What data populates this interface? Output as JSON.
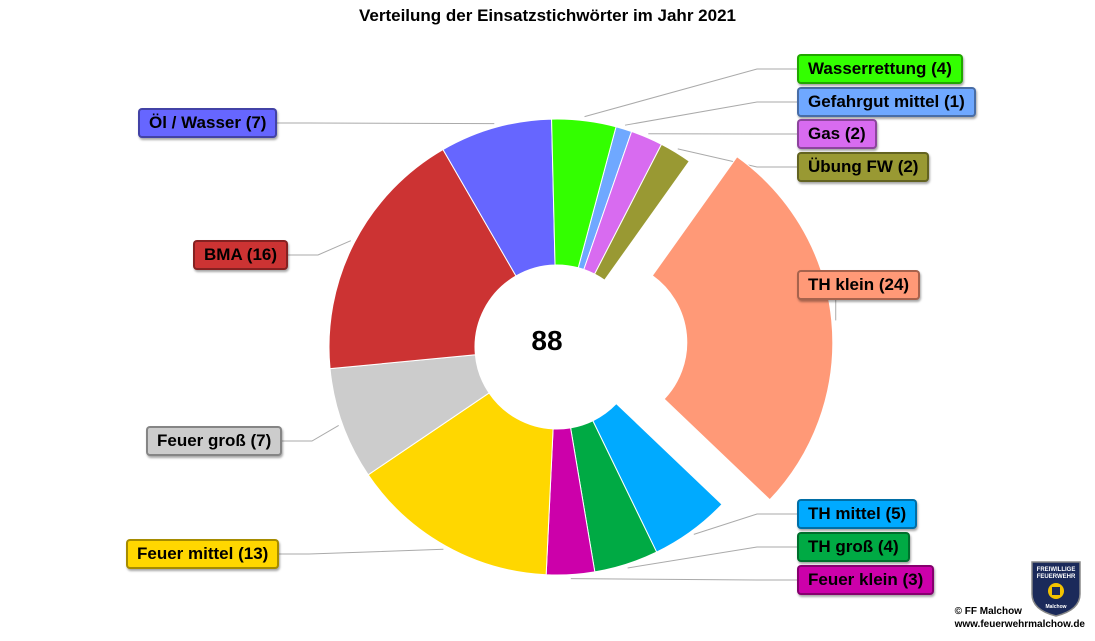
{
  "chart_data": {
    "type": "pie",
    "title": "Verteilung der Einsatzstichwörter im Jahr 2021",
    "center_label": "88",
    "legend": "none",
    "slices": [
      {
        "name": "Gefahrgut mittel",
        "value": 1,
        "label": "Gefahrgut mittel (1)",
        "color": "#6fa8ff"
      },
      {
        "name": "Gas",
        "value": 2,
        "label": "Gas (2)",
        "color": "#d86bf0"
      },
      {
        "name": "Übung FW",
        "value": 2,
        "label": "Übung FW (2)",
        "color": "#999933"
      },
      {
        "name": "TH klein",
        "value": 24,
        "label": "TH klein (24)",
        "color": "#ff9977"
      },
      {
        "name": "TH mittel",
        "value": 5,
        "label": "TH mittel (5)",
        "color": "#00aaff"
      },
      {
        "name": "TH groß",
        "value": 4,
        "label": "TH groß (4)",
        "color": "#00aa44"
      },
      {
        "name": "Feuer klein",
        "value": 3,
        "label": "Feuer klein (3)",
        "color": "#cc00aa"
      },
      {
        "name": "Feuer mittel",
        "value": 13,
        "label": "Feuer mittel (13)",
        "color": "#ffd700"
      },
      {
        "name": "Feuer groß",
        "value": 7,
        "label": "Feuer groß (7)",
        "color": "#cccccc"
      },
      {
        "name": "BMA",
        "value": 16,
        "label": "BMA (16)",
        "color": "#cc3333"
      },
      {
        "name": "Öl / Wasser",
        "value": 7,
        "label": "Öl / Wasser (7)",
        "color": "#6666ff"
      },
      {
        "name": "Wasserrettung",
        "value": 4,
        "label": "Wasserrettung (4)",
        "color": "#33ff00"
      }
    ],
    "exploded_slice": "TH klein"
  },
  "footer": {
    "copyright": "© FF Malchow",
    "website": "www.feuerwehrmalchow.de"
  },
  "logo": {
    "line1": "FREIWILLIGE",
    "line2": "FEUERWEHR",
    "line3": "Malchow"
  }
}
